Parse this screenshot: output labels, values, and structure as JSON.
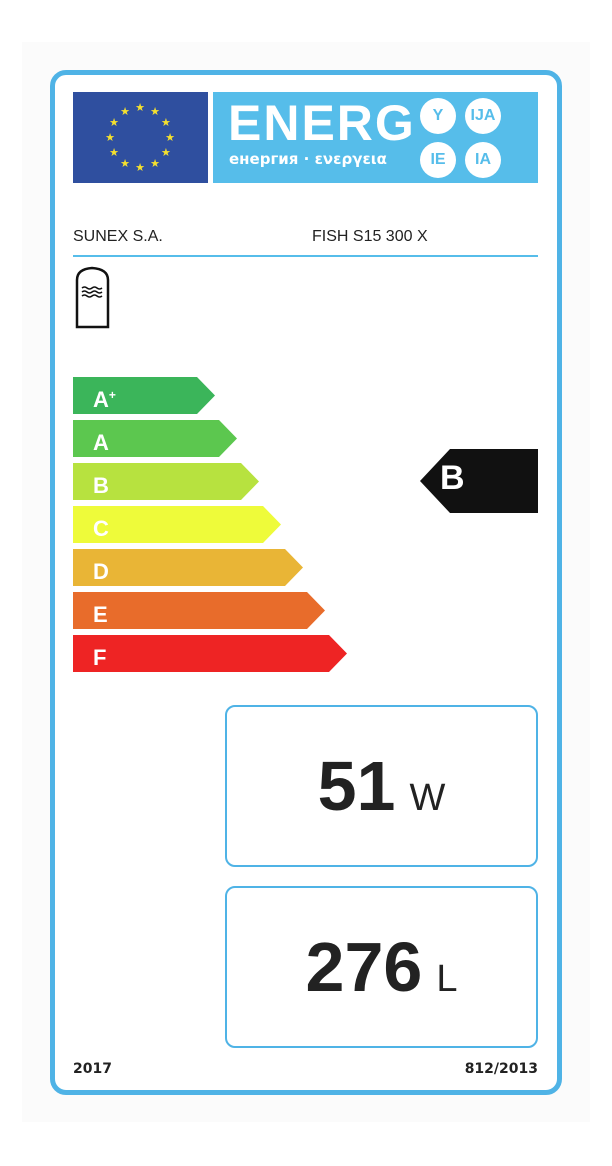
{
  "header": {
    "energy_word": "ENERG",
    "subtitle": "енергия · ενεργεια",
    "circles": [
      "Y",
      "IJA",
      "IE",
      "IA"
    ]
  },
  "supplier": "SUNEX S.A.",
  "model": "FISH S15 300 X",
  "product_icon": "water-heater-tank-icon",
  "scale": [
    {
      "label": "A",
      "sup": "+",
      "color": "#3bb55a"
    },
    {
      "label": "A",
      "sup": "",
      "color": "#5cc74f"
    },
    {
      "label": "B",
      "sup": "",
      "color": "#b7e23f"
    },
    {
      "label": "C",
      "sup": "",
      "color": "#eefb3a"
    },
    {
      "label": "D",
      "sup": "",
      "color": "#e9b536"
    },
    {
      "label": "E",
      "sup": "",
      "color": "#e86c2b"
    },
    {
      "label": "F",
      "sup": "",
      "color": "#ee2424"
    }
  ],
  "rating": "B",
  "standing_loss": {
    "value": "51",
    "unit": "W"
  },
  "volume": {
    "value": "276",
    "unit": "L"
  },
  "footer": {
    "year": "2017",
    "regulation": "812/2013"
  }
}
